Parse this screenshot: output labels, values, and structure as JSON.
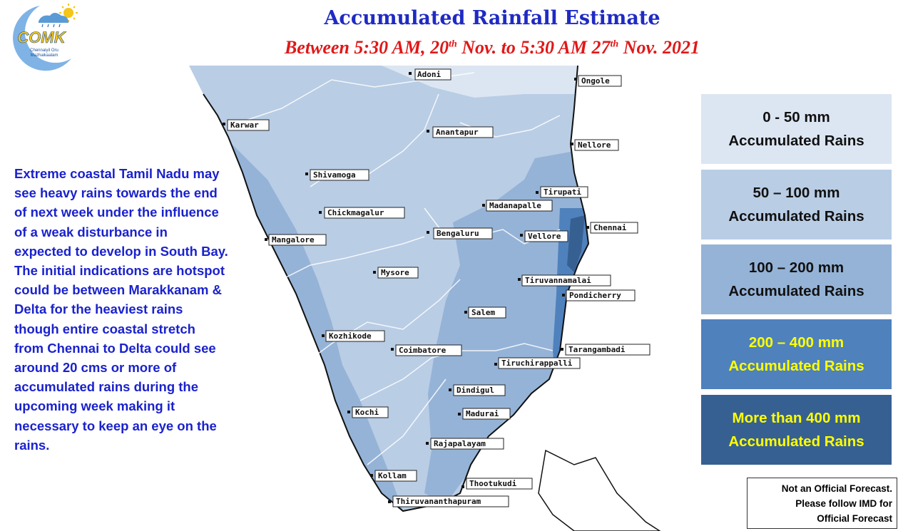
{
  "logo": {
    "text": "COMK",
    "tagline": "Chennaiyil Oru Mazhaikaalam"
  },
  "title": "Accumulated Rainfall Estimate",
  "subtitle": {
    "part1": "Between 5:30 AM, 20",
    "sup1": "th",
    "part2": " Nov. to 5:30 AM 27",
    "sup2": "th",
    "part3": " Nov. 2021"
  },
  "description": "Extreme coastal Tamil Nadu may see heavy rains towards the end of next week under the influence of a weak disturbance in expected to develop in South Bay.  The initial indications are hotspot could be between Marakkanam & Delta for the heaviest rains though entire coastal stretch from Chennai to Delta could see around 20 cms or more of accumulated rains during the upcoming week making it necessary to keep an eye on the rains.",
  "legend": [
    {
      "range": "0 - 50  mm",
      "label": "Accumulated Rains",
      "color": "#dce6f2",
      "text_color": "#111111"
    },
    {
      "range": "50 – 100 mm",
      "label": "Accumulated Rains",
      "color": "#b9cde5",
      "text_color": "#111111"
    },
    {
      "range": "100 – 200  mm",
      "label": "Accumulated Rains",
      "color": "#95b3d7",
      "text_color": "#111111"
    },
    {
      "range": "200  – 400  mm",
      "label": "Accumulated Rains",
      "color": "#4f81bd",
      "text_color": "#ffff00"
    },
    {
      "range": "More than 400 mm",
      "label": "Accumulated Rains",
      "color": "#376092",
      "text_color": "#ffff00"
    }
  ],
  "cities": [
    "Adoni",
    "Ongole",
    "Karwar",
    "Anantapur",
    "Nellore",
    "Shivamoga",
    "Tirupati",
    "Madanapalle",
    "Chickmagalur",
    "Chennai",
    "Bengaluru",
    "Vellore",
    "Mangalore",
    "Mysore",
    "Tiruvannamalai",
    "Pondicherry",
    "Salem",
    "Kozhikode",
    "Coimbatore",
    "Tarangambadi",
    "Tiruchirappalli",
    "Dindigul",
    "Kochi",
    "Madurai",
    "Rajapalayam",
    "Kollam",
    "Thootukudi",
    "Thiruvananthapuram"
  ],
  "disclaimer": [
    "Not an Official Forecast.",
    "Please follow IMD for",
    "Official Forecast"
  ]
}
